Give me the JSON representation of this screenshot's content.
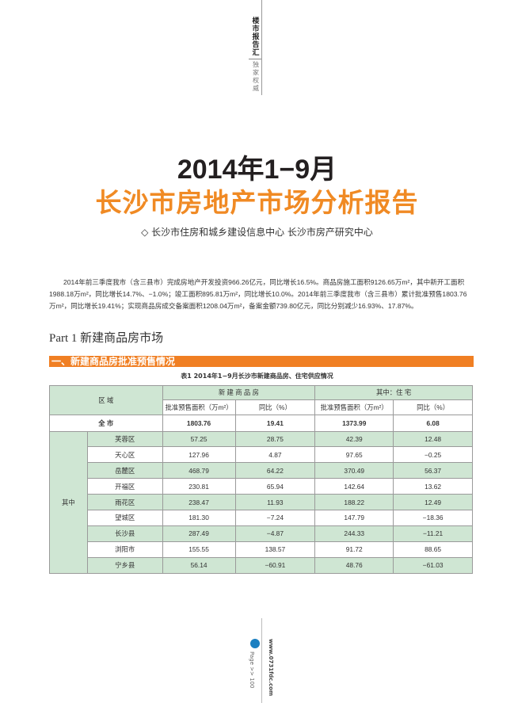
{
  "header": {
    "brand": "楼市报告汇",
    "tagline": "独家权威"
  },
  "title": {
    "line1": "2014年1−9月",
    "line2": "长沙市房地产市场分析报告",
    "authors": "◇  长沙市住房和城乡建设信息中心  长沙市房产研究中心"
  },
  "intro": "2014年前三季度我市（含三县市）完成房地产开发投资966.26亿元，同比增长16.5%。商品房施工面积9126.65万m²，其中新开工面积1988.18万m²，同比增长14.7%、−1.0%；竣工面积895.81万m²，同比增长10.0%。2014年前三季度我市（含三县市）累计批准预售1803.76万m²，同比增长19.41%；实现商品房成交备案面积1208.04万m²，备案金额739.80亿元，同比分别减少16.93%、17.87%。",
  "part": "Part 1  新建商品房市场",
  "section": "一、新建商品房批准预售情况",
  "table": {
    "caption": "表1  2014年1−9月长沙市新建商品房、住宅供应情况",
    "h_region": "区 域",
    "h_new": "新 建 商 品 房",
    "h_res": "其中：住   宅",
    "h_area": "批准预售面积（万m²）",
    "h_yoy": "同比（%）",
    "total": {
      "name": "全 市",
      "v": [
        "1803.76",
        "19.41",
        "1373.99",
        "6.08"
      ]
    },
    "group": "其中",
    "rows": [
      {
        "name": "芙蓉区",
        "v": [
          "57.25",
          "28.75",
          "42.39",
          "12.48"
        ]
      },
      {
        "name": "天心区",
        "v": [
          "127.96",
          "4.87",
          "97.65",
          "−0.25"
        ]
      },
      {
        "name": "岳麓区",
        "v": [
          "468.79",
          "64.22",
          "370.49",
          "56.37"
        ]
      },
      {
        "name": "开福区",
        "v": [
          "230.81",
          "65.94",
          "142.64",
          "13.62"
        ]
      },
      {
        "name": "雨花区",
        "v": [
          "238.47",
          "11.93",
          "188.22",
          "12.49"
        ]
      },
      {
        "name": "望城区",
        "v": [
          "181.30",
          "−7.24",
          "147.79",
          "−18.36"
        ]
      },
      {
        "name": "长沙县",
        "v": [
          "287.49",
          "−4.87",
          "244.33",
          "−11.21"
        ]
      },
      {
        "name": "浏阳市",
        "v": [
          "155.55",
          "138.57",
          "91.72",
          "88.65"
        ]
      },
      {
        "name": "宁乡县",
        "v": [
          "56.14",
          "−60.91",
          "48.76",
          "−61.03"
        ]
      }
    ]
  },
  "footer": {
    "page": "Page >> 100",
    "url": "www.0731fdc.com"
  },
  "colors": {
    "accent": "#f08a24",
    "table_green": "#cfe6d3"
  }
}
